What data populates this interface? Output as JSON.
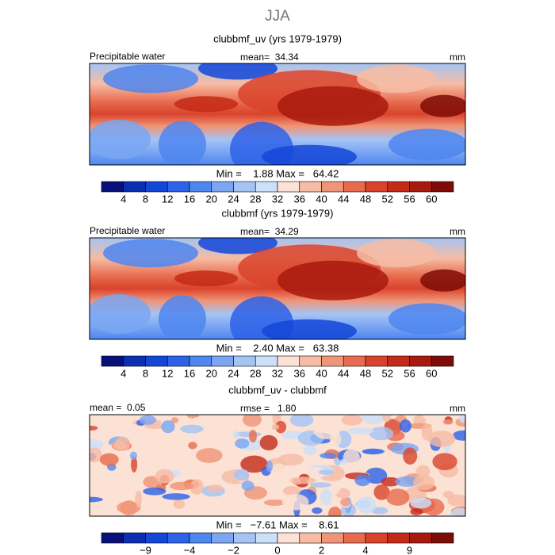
{
  "header": {
    "season": "JJA"
  },
  "panels": [
    {
      "title": "clubbmf_uv (yrs 1979-1979)",
      "left_label": "Precipitable water",
      "center_label": "mean=  34.34",
      "right_label": "mm",
      "min_max": "Min =    1.88 Max =   64.42",
      "colorbar": {
        "labels": [
          "4",
          "8",
          "12",
          "16",
          "20",
          "24",
          "28",
          "32",
          "36",
          "40",
          "44",
          "48",
          "52",
          "56",
          "60"
        ],
        "colors": [
          "#08107a",
          "#0b2fb0",
          "#1446d8",
          "#2e62e8",
          "#4f86f0",
          "#7aa6f2",
          "#a4c4f4",
          "#cce0fa",
          "#fbe2d4",
          "#f6bca4",
          "#f09578",
          "#e86b4e",
          "#d9432c",
          "#c42a18",
          "#a81a0e",
          "#7e0c06"
        ]
      }
    },
    {
      "title": "clubbmf (yrs 1979-1979)",
      "left_label": "Precipitable water",
      "center_label": "mean=  34.29",
      "right_label": "mm",
      "min_max": "Min =    2.40 Max =   63.38",
      "colorbar": {
        "labels": [
          "4",
          "8",
          "12",
          "16",
          "20",
          "24",
          "28",
          "32",
          "36",
          "40",
          "44",
          "48",
          "52",
          "56",
          "60"
        ],
        "colors": [
          "#08107a",
          "#0b2fb0",
          "#1446d8",
          "#2e62e8",
          "#4f86f0",
          "#7aa6f2",
          "#a4c4f4",
          "#cce0fa",
          "#fbe2d4",
          "#f6bca4",
          "#f09578",
          "#e86b4e",
          "#d9432c",
          "#c42a18",
          "#a81a0e",
          "#7e0c06"
        ]
      }
    },
    {
      "title": "clubbmf_uv - clubbmf",
      "left_label": "mean =  0.05",
      "center_label": "rmse =   1.80",
      "right_label": "mm",
      "min_max": "Min =   −7.61 Max =    8.61",
      "colorbar": {
        "labels": [
          "−9",
          "−4",
          "−2",
          "0",
          "2",
          "4",
          "9"
        ],
        "colors": [
          "#08107a",
          "#0b2fb0",
          "#1446d8",
          "#2e62e8",
          "#4f86f0",
          "#7aa6f2",
          "#a4c4f4",
          "#cce0fa",
          "#fbe2d4",
          "#f6bca4",
          "#f09578",
          "#e86b4e",
          "#d9432c",
          "#c42a18",
          "#a81a0e",
          "#7e0c06"
        ]
      }
    }
  ]
}
